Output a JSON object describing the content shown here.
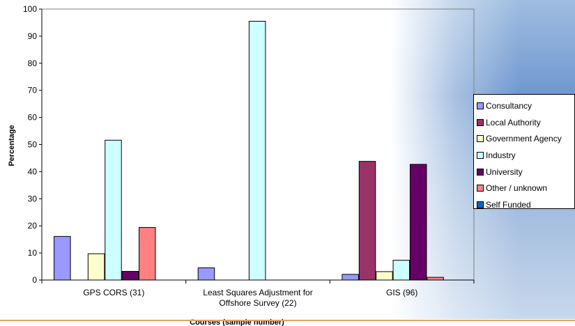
{
  "chart_data": {
    "type": "bar",
    "xlabel": "Courses (sample number)",
    "ylabel": "Percentage",
    "ylim": [
      0,
      100
    ],
    "yticks": [
      0,
      10,
      20,
      30,
      40,
      50,
      60,
      70,
      80,
      90,
      100
    ],
    "categories": [
      [
        "GPS CORS (31)"
      ],
      [
        "Least Squares Adjustment for",
        "Offshore Survey (22)"
      ],
      [
        "GIS (96)"
      ]
    ],
    "series": [
      {
        "name": "Consultancy",
        "color": "#9999ff",
        "values": [
          16.1,
          4.5,
          2.1
        ]
      },
      {
        "name": "Local Authority",
        "color": "#993366",
        "values": [
          0,
          0,
          43.8
        ]
      },
      {
        "name": "Government Agency",
        "color": "#ffffcc",
        "values": [
          9.7,
          0,
          3.1
        ]
      },
      {
        "name": "Industry",
        "color": "#ccffff",
        "values": [
          51.6,
          95.5,
          7.3
        ]
      },
      {
        "name": "University",
        "color": "#660066",
        "values": [
          3.2,
          0,
          42.7
        ]
      },
      {
        "name": "Other / unknown",
        "color": "#ff8080",
        "values": [
          19.4,
          0,
          1.0
        ]
      },
      {
        "name": "Self Funded",
        "color": "#0066cc",
        "values": [
          0,
          0,
          0
        ]
      }
    ],
    "grid": false,
    "legend": "right"
  }
}
